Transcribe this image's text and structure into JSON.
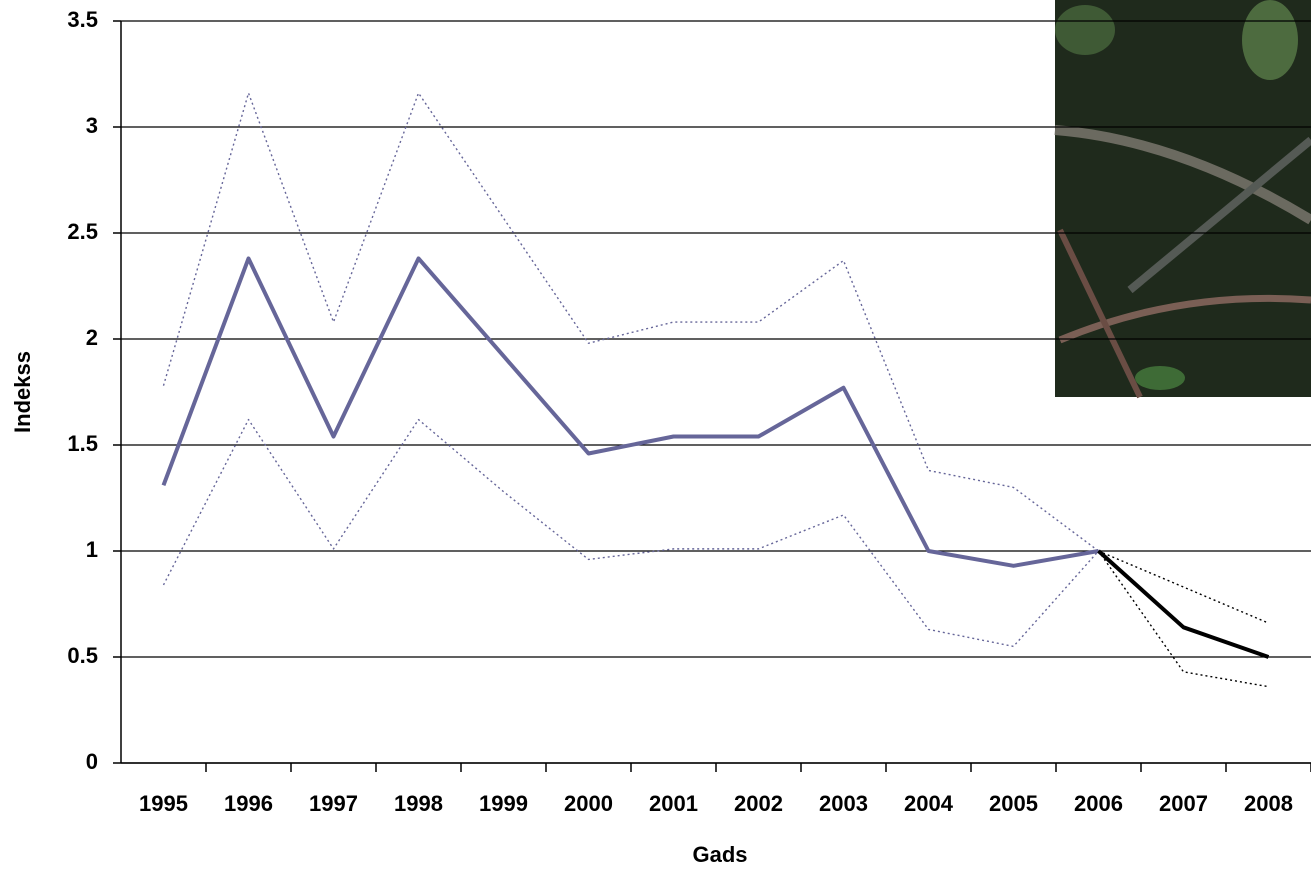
{
  "chart_data": {
    "type": "line",
    "x_label": "Gads",
    "y_label": "Indekss",
    "categories": [
      "1995",
      "1996",
      "1997",
      "1998",
      "1999",
      "2000",
      "2001",
      "2002",
      "2003",
      "2004",
      "2005",
      "2006",
      "2007",
      "2008"
    ],
    "series": [
      {
        "color": "#666699",
        "style": "solid",
        "values": [
          1.31,
          2.38,
          1.54,
          2.38,
          1.92,
          1.46,
          1.54,
          1.54,
          1.77,
          1.0,
          0.93,
          1.0,
          null,
          null
        ]
      },
      {
        "color": "#666699",
        "style": "dotted",
        "values": [
          1.78,
          3.16,
          2.08,
          3.16,
          2.57,
          1.98,
          2.08,
          2.08,
          2.37,
          1.38,
          1.3,
          1.0,
          null,
          null
        ]
      },
      {
        "color": "#666699",
        "style": "dotted",
        "values": [
          0.84,
          1.62,
          1.01,
          1.62,
          1.28,
          0.96,
          1.01,
          1.01,
          1.17,
          0.63,
          0.55,
          1.0,
          null,
          null
        ]
      },
      {
        "color": "#000000",
        "style": "solid",
        "values": [
          null,
          null,
          null,
          null,
          null,
          null,
          null,
          null,
          null,
          null,
          null,
          1.0,
          0.64,
          0.5
        ]
      },
      {
        "color": "#000000",
        "style": "dotted",
        "values": [
          null,
          null,
          null,
          null,
          null,
          null,
          null,
          null,
          null,
          null,
          null,
          1.0,
          0.83,
          0.66
        ]
      },
      {
        "color": "#000000",
        "style": "dotted",
        "values": [
          null,
          null,
          null,
          null,
          null,
          null,
          null,
          null,
          null,
          null,
          null,
          1.0,
          0.43,
          0.36
        ]
      }
    ],
    "ylim": [
      0,
      3.5
    ],
    "yticks": [
      0,
      0.5,
      1,
      1.5,
      2,
      2.5,
      3,
      3.5
    ],
    "grid": true
  }
}
